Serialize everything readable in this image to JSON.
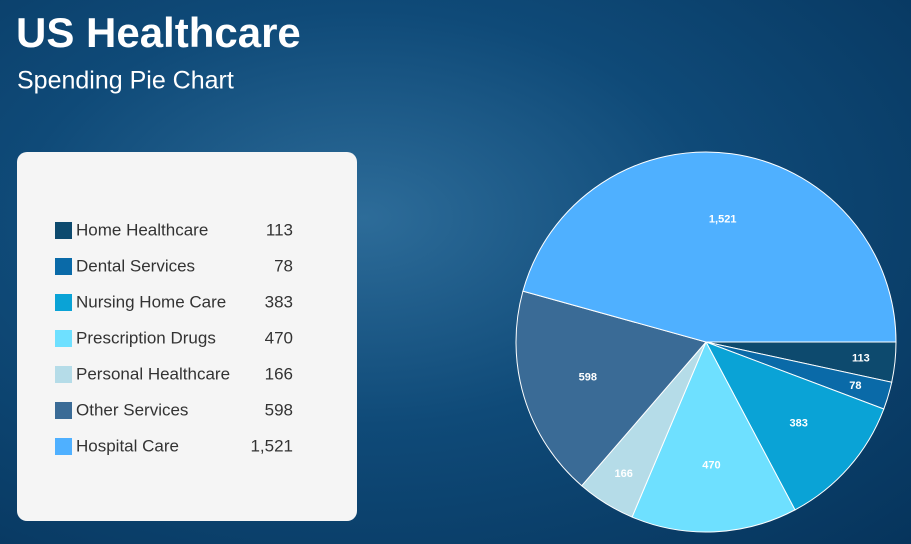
{
  "chart_data": {
    "type": "pie",
    "title": "US Healthcare",
    "subtitle": "Spending Pie Chart",
    "categories": [
      "Home Healthcare",
      "Dental Services",
      "Nursing Home Care",
      "Prescription Drugs",
      "Personal Healthcare",
      "Other Services",
      "Hospital Care"
    ],
    "values": [
      113,
      78,
      383,
      470,
      166,
      598,
      1521
    ],
    "value_labels": [
      "113",
      "78",
      "383",
      "470",
      "166",
      "598",
      "1,521"
    ],
    "colors": [
      "#0d4a6e",
      "#0a6aa8",
      "#0aa3d6",
      "#6ee0ff",
      "#b5dce8",
      "#3a6b96",
      "#4fb0ff"
    ]
  }
}
